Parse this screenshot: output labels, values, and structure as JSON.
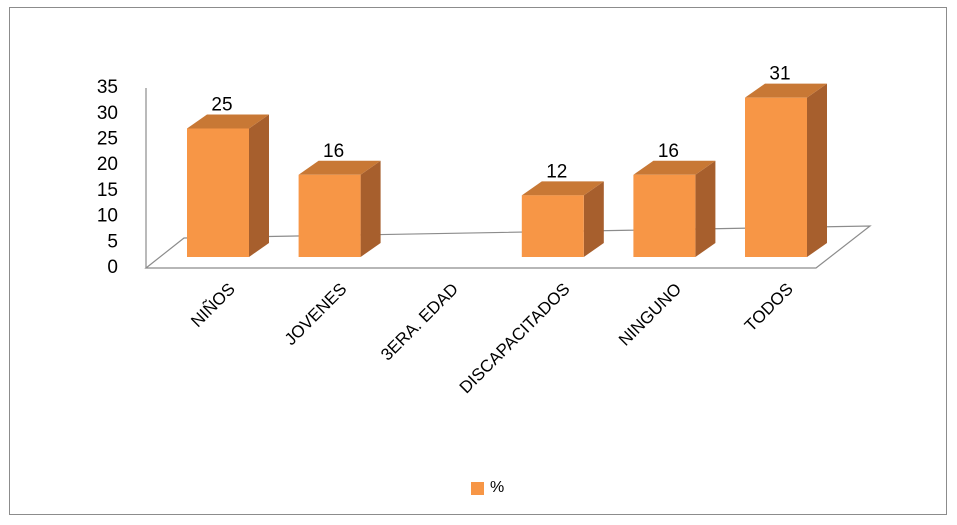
{
  "chart_data": {
    "type": "bar",
    "style": "3d-column",
    "categories": [
      "NIÑOS",
      "JOVENES",
      "3ERA. EDAD",
      "DISCAPACITADOS",
      "NINGUNO",
      "TODOS"
    ],
    "series": [
      {
        "name": "%",
        "values": [
          25,
          16,
          null,
          12,
          16,
          31
        ],
        "color": "#F79646"
      }
    ],
    "data_labels": [
      "25",
      "16",
      "",
      "12",
      "16",
      "31"
    ],
    "ylim": [
      0,
      35
    ],
    "yticks": [
      0,
      5,
      10,
      15,
      20,
      25,
      30,
      35
    ],
    "grid": false,
    "legend_position": "bottom",
    "title": "",
    "xlabel": "",
    "ylabel": ""
  },
  "colors": {
    "bar_front": "#F79646",
    "bar_side": "#A75F2D",
    "bar_top": "#C87835",
    "floor_line": "#8c8c8c"
  }
}
